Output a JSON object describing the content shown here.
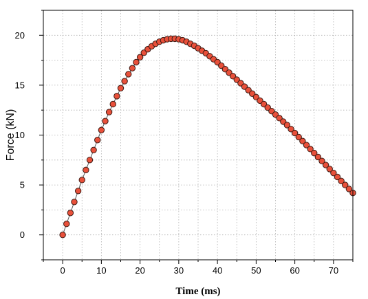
{
  "chart_data": {
    "type": "scatter",
    "xlabel": "Time (ms)",
    "ylabel": "Force (kN)",
    "xlim": [
      -5,
      75
    ],
    "ylim": [
      -2.5,
      22.5
    ],
    "x_ticks": [
      0,
      10,
      20,
      30,
      40,
      50,
      60,
      70
    ],
    "y_ticks": [
      0,
      5,
      10,
      15,
      20
    ],
    "grid": true,
    "grid_style": "dotted",
    "marker_color": "#e8503a",
    "marker_edge": "#3a1a14",
    "line_color": "#555555",
    "series": [
      {
        "x": [
          0,
          1,
          2,
          3,
          4,
          5,
          6,
          7,
          8,
          9,
          10,
          11,
          12,
          13,
          14,
          15,
          16,
          17,
          18,
          19,
          20,
          21,
          22,
          23,
          24,
          25,
          26,
          27,
          28,
          29,
          30,
          31,
          32,
          33,
          34,
          35,
          36,
          37,
          38,
          39,
          40,
          41,
          42,
          43,
          44,
          45,
          46,
          47,
          48,
          49,
          50,
          51,
          52,
          53,
          54,
          55,
          56,
          57,
          58,
          59,
          60,
          61,
          62,
          63,
          64,
          65,
          66,
          67,
          68,
          69,
          70,
          71,
          72,
          73,
          74,
          75
        ],
        "y": [
          0,
          1.1,
          2.2,
          3.3,
          4.4,
          5.5,
          6.5,
          7.5,
          8.5,
          9.5,
          10.5,
          11.4,
          12.3,
          13.1,
          13.9,
          14.7,
          15.4,
          16.1,
          16.7,
          17.3,
          17.8,
          18.25,
          18.6,
          18.9,
          19.15,
          19.35,
          19.5,
          19.6,
          19.65,
          19.65,
          19.6,
          19.5,
          19.35,
          19.15,
          18.95,
          18.7,
          18.45,
          18.2,
          17.9,
          17.6,
          17.3,
          16.95,
          16.6,
          16.25,
          15.9,
          15.55,
          15.2,
          14.85,
          14.5,
          14.15,
          13.8,
          13.45,
          13.1,
          12.75,
          12.4,
          12.05,
          11.7,
          11.35,
          11.0,
          10.6,
          10.2,
          9.8,
          9.4,
          9.0,
          8.6,
          8.2,
          7.8,
          7.4,
          7.0,
          6.6,
          6.2,
          5.8,
          5.4,
          5.0,
          4.6,
          4.2
        ]
      }
    ]
  }
}
